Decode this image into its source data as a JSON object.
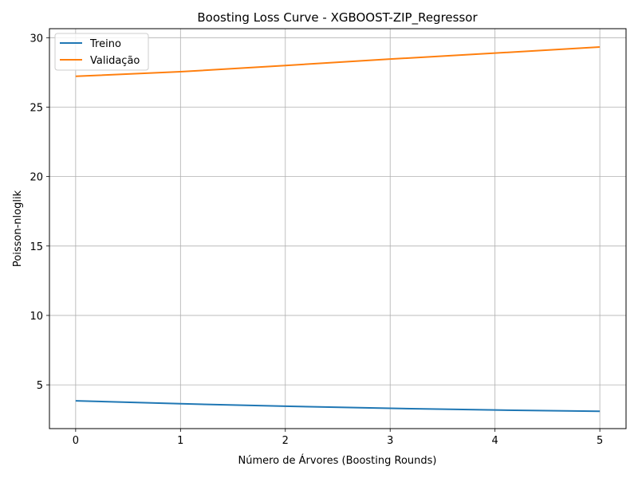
{
  "chart_data": {
    "type": "line",
    "title": "Boosting Loss Curve - XGBOOST-ZIP_Regressor",
    "xlabel": "Número de Árvores (Boosting Rounds)",
    "ylabel": "Poisson-nloglik",
    "x": [
      0,
      1,
      2,
      3,
      4,
      5
    ],
    "xlim": [
      -0.25,
      5.25
    ],
    "ylim": [
      1.85,
      30.65
    ],
    "xticks": [
      0,
      1,
      2,
      3,
      4,
      5
    ],
    "yticks": [
      5,
      10,
      15,
      20,
      25,
      30
    ],
    "grid": true,
    "legend_position": "top-left",
    "series": [
      {
        "name": "Treino",
        "color": "#1f77b4",
        "values": [
          3.85,
          3.64,
          3.46,
          3.31,
          3.19,
          3.1
        ]
      },
      {
        "name": "Validação",
        "color": "#ff7f0e",
        "values": [
          27.22,
          27.55,
          28.0,
          28.46,
          28.89,
          29.33
        ]
      }
    ]
  }
}
